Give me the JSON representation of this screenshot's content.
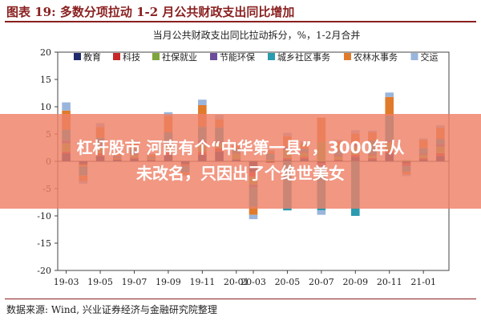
{
  "figure_title": "图表 19: 多数分项拉动 1-2 月公共财政支出同比增加",
  "source": "数据来源: Wind, 兴业证券经济与金融研究院整理",
  "banner": {
    "line1": "杠杆股市 河南有个“中华第一县”，3000年从",
    "line2": "未改名，只因出了个绝世美女"
  },
  "colors": {
    "教育": "#1f2a6b",
    "科技": "#c62828",
    "社保就业": "#7ea43c",
    "节能环保": "#6b4e9b",
    "城乡社区事务": "#2b9bb0",
    "农林水事务": "#e07b2c",
    "交运": "#9ab5dc"
  },
  "chart_data": {
    "type": "bar",
    "stacked": true,
    "title": "当月公共财政支出同比拉动拆分，%，1-2月合并",
    "ylim": [
      -20,
      20
    ],
    "yticks": [
      -20,
      -15,
      -10,
      -5,
      0,
      5,
      10,
      15,
      20
    ],
    "xtick_labels": [
      "19-03",
      "19-05",
      "19-07",
      "19-09",
      "19-11",
      "20-01",
      "20-03",
      "20-05",
      "20-07",
      "20-09",
      "20-11",
      "21-01"
    ],
    "legend_position": "top",
    "grid": false,
    "categories": [
      "19-03",
      "19-04",
      "19-05",
      "19-06",
      "19-07",
      "19-08",
      "19-09",
      "19-10",
      "19-11",
      "19-12",
      "20-01",
      "20-03",
      "20-04",
      "20-05",
      "20-06",
      "20-07",
      "20-08",
      "20-09",
      "20-10",
      "20-11",
      "20-12",
      "21-01",
      "21-02"
    ],
    "series": [
      {
        "name": "教育",
        "values": [
          1.5,
          -0.5,
          1.0,
          0.3,
          0.5,
          0.2,
          1.2,
          -0.5,
          1.2,
          1.8,
          0.3,
          -2.0,
          -0.2,
          0.4,
          0.5,
          -0.3,
          0.2,
          0.8,
          0.4,
          1.5,
          -0.4,
          0.4,
          1.0
        ]
      },
      {
        "name": "科技",
        "values": [
          0.3,
          -0.2,
          0.5,
          0.1,
          0.2,
          0.1,
          0.6,
          -0.2,
          0.5,
          0.6,
          0.1,
          -0.8,
          -0.1,
          0.2,
          0.3,
          -0.2,
          0.1,
          0.4,
          0.2,
          0.5,
          -0.3,
          0.2,
          0.5
        ]
      },
      {
        "name": "社保就业",
        "values": [
          1.5,
          -0.3,
          1.0,
          0.2,
          0.5,
          0.2,
          1.0,
          -0.1,
          1.5,
          1.0,
          1.0,
          -1.5,
          0.3,
          1.5,
          0.8,
          3.5,
          0.6,
          1.5,
          0.5,
          1.5,
          0.2,
          0.6,
          1.2
        ]
      },
      {
        "name": "节能环保",
        "values": [
          0.5,
          -0.1,
          0.3,
          0.2,
          0.2,
          0.0,
          0.5,
          -0.2,
          0.6,
          0.3,
          0.2,
          -0.5,
          0.1,
          0.5,
          0.2,
          -0.5,
          0.2,
          0.4,
          0.2,
          0.3,
          -0.2,
          0.2,
          0.4
        ]
      },
      {
        "name": "城乡社区事务",
        "values": [
          2.0,
          -1.5,
          1.5,
          0.2,
          1.0,
          0.3,
          2.0,
          -1.0,
          2.5,
          2.5,
          0.8,
          -3.5,
          1.0,
          -9.0,
          0.5,
          -8.0,
          1.0,
          -10.0,
          2.5,
          4.5,
          -1.0,
          1.0,
          1.0
        ]
      },
      {
        "name": "农林水事务",
        "values": [
          3.5,
          -1.0,
          2.0,
          0.5,
          1.0,
          0.5,
          3.0,
          -0.5,
          4.0,
          1.5,
          0.5,
          -1.5,
          0.5,
          2.0,
          1.0,
          4.5,
          1.5,
          2.0,
          1.5,
          3.5,
          -0.5,
          1.5,
          2.0
        ]
      },
      {
        "name": "交运",
        "values": [
          1.5,
          -0.5,
          0.7,
          0.2,
          0.4,
          0.1,
          0.7,
          -0.2,
          1.0,
          0.8,
          0.3,
          -0.8,
          0.2,
          0.6,
          0.4,
          -0.8,
          0.3,
          0.6,
          0.3,
          0.8,
          -0.3,
          0.3,
          0.5
        ]
      }
    ]
  }
}
